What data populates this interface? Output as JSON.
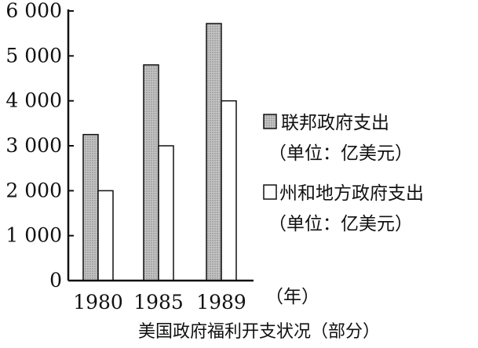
{
  "chart_data": {
    "type": "bar",
    "categories": [
      "1980",
      "1985",
      "1989"
    ],
    "series": [
      {
        "name": "联邦政府支出",
        "values": [
          3250,
          4800,
          5720
        ],
        "color": "#bdbdbd",
        "pattern": "dotted"
      },
      {
        "name": "州和地方政府支出",
        "values": [
          2000,
          3000,
          4000
        ],
        "color": "#ffffff",
        "pattern": "none"
      }
    ],
    "ylim": [
      0,
      6000
    ],
    "yticks": [
      0,
      1000,
      2000,
      3000,
      4000,
      5000,
      6000
    ],
    "ytick_labels": [
      "0",
      "1 000",
      "2 000",
      "3 000",
      "4 000",
      "5 000",
      "6 000"
    ],
    "legend_units": [
      "（单位：亿美元）",
      "（单位：亿美元）"
    ],
    "xunit": "（年）",
    "caption": "美国政府福利开支状况（部分）",
    "legend_placement": "right",
    "grid": false
  }
}
